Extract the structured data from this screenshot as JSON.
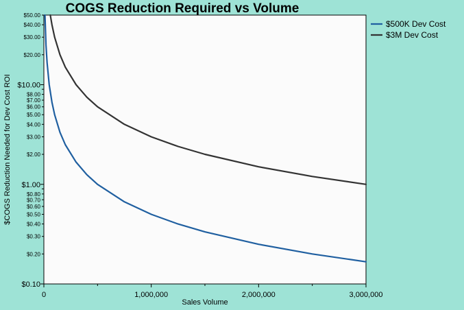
{
  "chart_data": {
    "type": "line",
    "title": "COGS Reduction Required vs Volume",
    "xlabel": "Sales Volume",
    "ylabel": "$COGS Reduction Needed for Dev Cost ROI",
    "x_scale": "linear",
    "y_scale": "log",
    "xlim": [
      0,
      3000000
    ],
    "ylim": [
      0.1,
      50
    ],
    "x_ticks": [
      {
        "value": 0,
        "label": "0"
      },
      {
        "value": 1000000,
        "label": "1,000,000"
      },
      {
        "value": 2000000,
        "label": "2,000,000"
      },
      {
        "value": 3000000,
        "label": "3,000,000"
      }
    ],
    "x_minor_ticks": [
      500000,
      1500000,
      2500000
    ],
    "y_ticks": [
      {
        "value": 50,
        "label": "$50.00",
        "major": false
      },
      {
        "value": 40,
        "label": "$40.00",
        "major": false
      },
      {
        "value": 30,
        "label": "$30.00",
        "major": false
      },
      {
        "value": 20,
        "label": "$20.00",
        "major": false
      },
      {
        "value": 10,
        "label": "$10.00",
        "major": true
      },
      {
        "value": 8,
        "label": "$8.00",
        "major": false
      },
      {
        "value": 7,
        "label": "$7.00",
        "major": false
      },
      {
        "value": 6,
        "label": "$6.00",
        "major": false
      },
      {
        "value": 5,
        "label": "$5.00",
        "major": false
      },
      {
        "value": 4,
        "label": "$4.00",
        "major": false
      },
      {
        "value": 3,
        "label": "$3.00",
        "major": false
      },
      {
        "value": 2,
        "label": "$2.00",
        "major": false
      },
      {
        "value": 1,
        "label": "$1.00",
        "major": true
      },
      {
        "value": 0.8,
        "label": "$0.80",
        "major": false
      },
      {
        "value": 0.7,
        "label": "$0.70",
        "major": false
      },
      {
        "value": 0.6,
        "label": "$0.60",
        "major": false
      },
      {
        "value": 0.5,
        "label": "$0.50",
        "major": false
      },
      {
        "value": 0.4,
        "label": "$0.40",
        "major": false
      },
      {
        "value": 0.3,
        "label": "$0.30",
        "major": false
      },
      {
        "value": 0.2,
        "label": "$0.20",
        "major": false
      },
      {
        "value": 0.1,
        "label": "$0.10",
        "major": true
      }
    ],
    "y_minor_ticks": [
      9,
      0.9
    ],
    "grid": false,
    "legend_position": "right",
    "series": [
      {
        "name": "$500K Dev Cost",
        "color": "#1f5fa0",
        "x": [
          10000,
          20000,
          30000,
          50000,
          75000,
          100000,
          150000,
          200000,
          300000,
          400000,
          500000,
          750000,
          1000000,
          1250000,
          1500000,
          2000000,
          2500000,
          3000000
        ],
        "y": [
          50,
          25,
          16.67,
          10,
          6.67,
          5,
          3.33,
          2.5,
          1.67,
          1.25,
          1,
          0.667,
          0.5,
          0.4,
          0.333,
          0.25,
          0.2,
          0.167
        ]
      },
      {
        "name": "$3M Dev Cost",
        "color": "#333333",
        "x": [
          60000,
          75000,
          100000,
          150000,
          200000,
          300000,
          400000,
          500000,
          750000,
          1000000,
          1250000,
          1500000,
          2000000,
          2500000,
          3000000
        ],
        "y": [
          50,
          40,
          30,
          20,
          15,
          10,
          7.5,
          6,
          4,
          3,
          2.4,
          2,
          1.5,
          1.2,
          1
        ]
      }
    ]
  }
}
